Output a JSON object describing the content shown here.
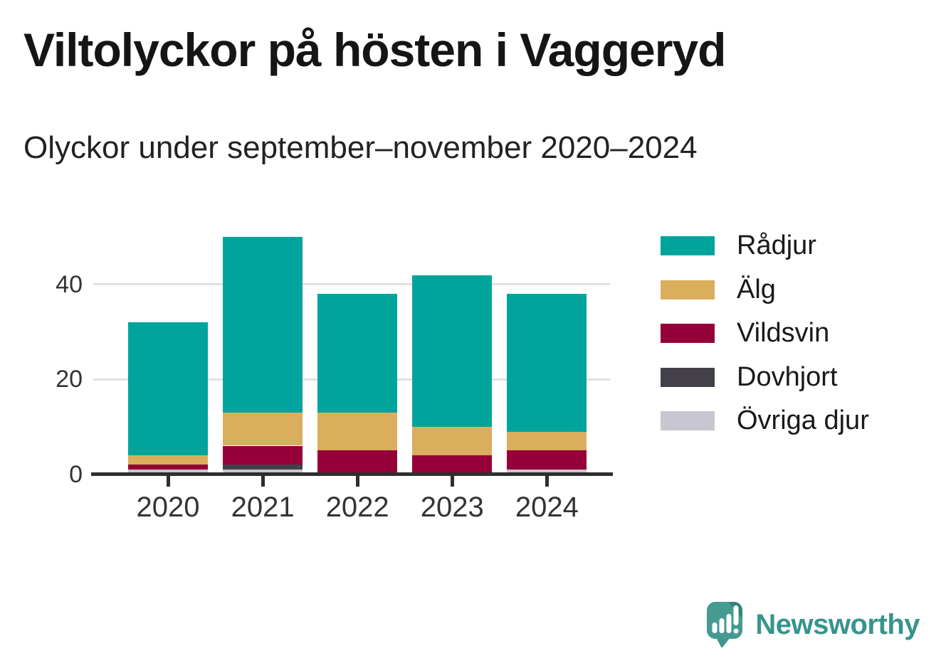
{
  "header": {
    "title": "Viltolyckor på hösten i Vaggeryd",
    "subtitle": "Olyckor under september–november 2020–2024"
  },
  "chart_data": {
    "type": "bar",
    "stacked": true,
    "title": "Viltolyckor på hösten i Vaggeryd",
    "subtitle": "Olyckor under september–november 2020–2024",
    "categories": [
      "2020",
      "2021",
      "2022",
      "2023",
      "2024"
    ],
    "series": [
      {
        "name": "Rådjur",
        "color": "#00a49c",
        "values": [
          28,
          37,
          25,
          32,
          29
        ]
      },
      {
        "name": "Älg",
        "color": "#dbae5d",
        "values": [
          2,
          7,
          8,
          6,
          4
        ]
      },
      {
        "name": "Vildsvin",
        "color": "#960038",
        "values": [
          1,
          4,
          5,
          4,
          4
        ]
      },
      {
        "name": "Dovhjort",
        "color": "#434049",
        "values": [
          0,
          1,
          0,
          0,
          0
        ]
      },
      {
        "name": "Övriga djur",
        "color": "#c8c7d1",
        "values": [
          1,
          1,
          0,
          0,
          1
        ]
      }
    ],
    "totals": [
      32,
      50,
      38,
      42,
      38
    ],
    "stack_order_bottom_to_top": [
      "Övriga djur",
      "Dovhjort",
      "Vildsvin",
      "Älg",
      "Rådjur"
    ],
    "xlabel": "",
    "ylabel": "",
    "y_ticks": [
      0,
      20,
      40
    ],
    "ylim": [
      0,
      50
    ],
    "grid": "horizontal",
    "legend_position": "right"
  },
  "colors": {
    "axis": "#2e2e2e",
    "gridline": "#e1e1e1",
    "tick_label": "#333333",
    "title_text": "#151515",
    "brand_teal": "#37948c"
  },
  "footer": {
    "brand": "Newsworthy",
    "logo_icon": "newsworthy-speech-bubble-bar-chart-icon"
  }
}
